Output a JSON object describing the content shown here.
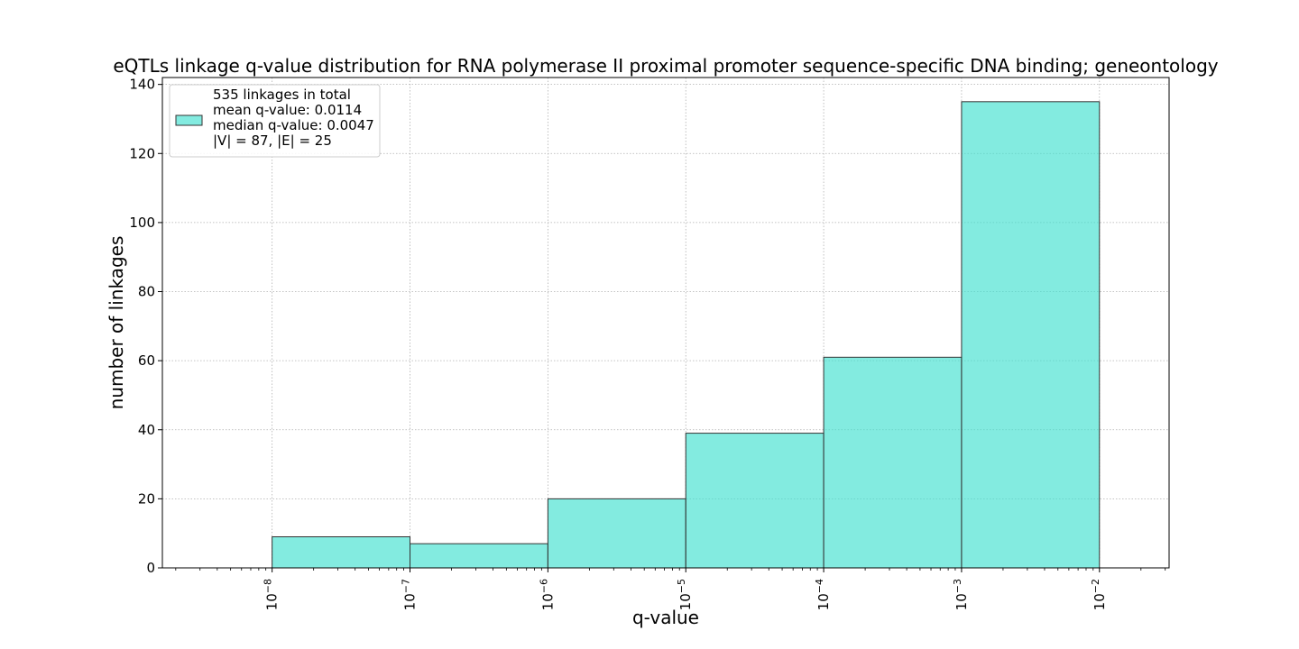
{
  "chart_data": {
    "type": "bar",
    "title": "eQTLs linkage q-value distribution for RNA polymerase II proximal promoter sequence-specific DNA binding; geneontology",
    "xlabel": "q-value",
    "ylabel": "number of linkages",
    "x_scale": "log",
    "xlim": [
      1.6e-09,
      0.032
    ],
    "ylim": [
      0,
      142
    ],
    "bins": [
      {
        "from": 1e-08,
        "to": 1e-07,
        "value": 9
      },
      {
        "from": 1e-07,
        "to": 1e-06,
        "value": 7
      },
      {
        "from": 1e-06,
        "to": 1e-05,
        "value": 20
      },
      {
        "from": 1e-05,
        "to": 0.0001,
        "value": 39
      },
      {
        "from": 0.0001,
        "to": 0.001,
        "value": 61
      },
      {
        "from": 0.001,
        "to": 0.01,
        "value": 135
      }
    ],
    "x_ticks": [
      {
        "value": 1e-08,
        "base": "10",
        "exp": "−8"
      },
      {
        "value": 1e-07,
        "base": "10",
        "exp": "−7"
      },
      {
        "value": 1e-06,
        "base": "10",
        "exp": "−6"
      },
      {
        "value": 1e-05,
        "base": "10",
        "exp": "−5"
      },
      {
        "value": 0.0001,
        "base": "10",
        "exp": "−4"
      },
      {
        "value": 0.001,
        "base": "10",
        "exp": "−3"
      },
      {
        "value": 0.01,
        "base": "10",
        "exp": "−2"
      }
    ],
    "y_ticks": [
      0,
      20,
      40,
      60,
      80,
      100,
      120,
      140
    ],
    "grid": true,
    "bar_color": "#40E0D0",
    "edge_color": "#333333",
    "legend": {
      "placement": "top-left",
      "lines": [
        "535 linkages in total",
        "mean q-value: 0.0114",
        "median q-value: 0.0047",
        "|V| = 87, |E| = 25"
      ]
    }
  }
}
